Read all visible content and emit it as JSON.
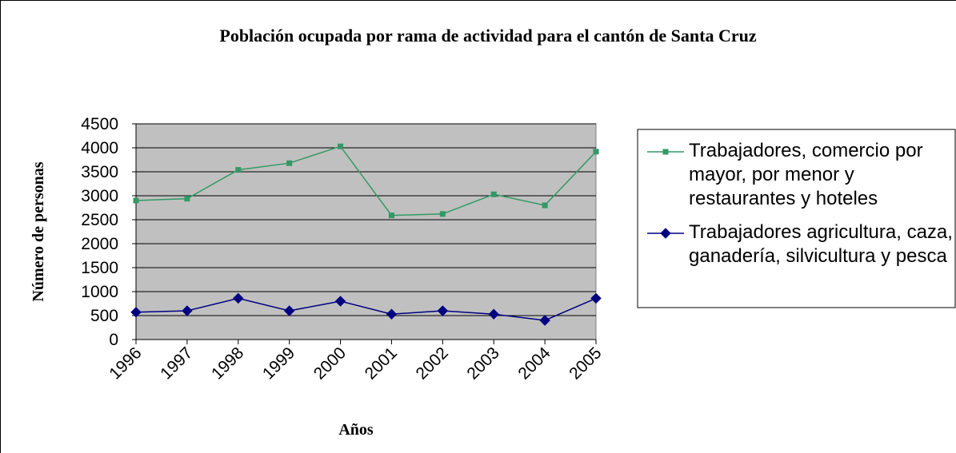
{
  "chart_data": {
    "type": "line",
    "title": "Población ocupada por rama de actividad para el cantón de Santa Cruz",
    "xlabel": "Años",
    "ylabel": "Número de personas",
    "categories": [
      "1996",
      "1997",
      "1998",
      "1999",
      "2000",
      "2001",
      "2002",
      "2003",
      "2004",
      "2005"
    ],
    "series": [
      {
        "name": "Trabajadores, comercio por mayor, por menor y restaurantes y hoteles",
        "color": "#339966",
        "marker": "square",
        "values": [
          2900,
          2940,
          3540,
          3680,
          4030,
          2590,
          2620,
          3030,
          2800,
          3920
        ]
      },
      {
        "name": "Trabajadores agricultura, caza, ganadería, silvicultura y pesca",
        "color": "#000080",
        "marker": "diamond",
        "values": [
          570,
          600,
          860,
          600,
          800,
          530,
          600,
          530,
          400,
          860
        ]
      }
    ],
    "ylim": [
      0,
      4500
    ],
    "yticks": [
      0,
      500,
      1000,
      1500,
      2000,
      2500,
      3000,
      3500,
      4000,
      4500
    ],
    "grid": true,
    "legend": "right"
  }
}
